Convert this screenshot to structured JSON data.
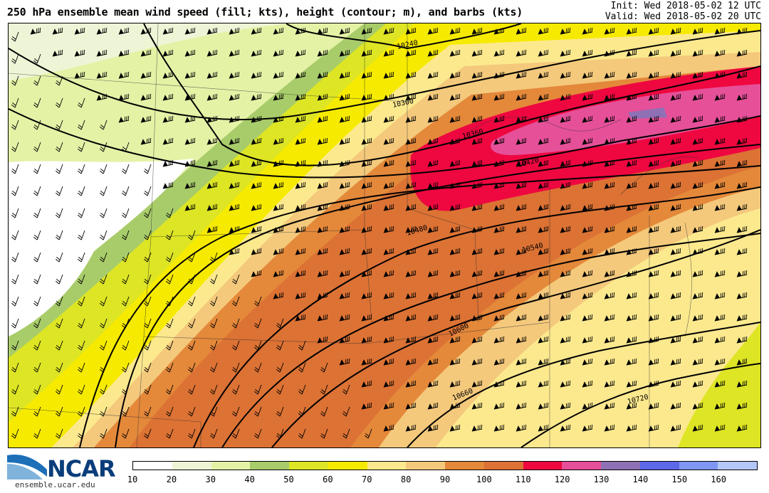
{
  "header": {
    "title": "250 hPa ensemble mean wind speed (fill; kts), height (contour; m), and barbs (kts)",
    "init": "Init: Wed 2018-05-02 12 UTC",
    "valid": "Valid: Wed 2018-05-02 20 UTC"
  },
  "contours": {
    "labels": [
      "10240",
      "10300",
      "10360",
      "10420",
      "10480",
      "10540",
      "10600",
      "10660",
      "10720"
    ]
  },
  "colorbar": {
    "ticks": [
      "10",
      "20",
      "30",
      "40",
      "50",
      "60",
      "70",
      "80",
      "90",
      "100",
      "110",
      "120",
      "130",
      "140",
      "150",
      "160"
    ],
    "colors": [
      "#ffffff",
      "#eef5d6",
      "#e4f2a6",
      "#a8cc6a",
      "#dde524",
      "#f6ea00",
      "#fce98e",
      "#f4c97c",
      "#e4883a",
      "#dc7234",
      "#ef0740",
      "#e55099",
      "#8f70b4",
      "#5b68e8",
      "#7f96f2",
      "#b4c8f8"
    ]
  },
  "footer": {
    "logo": "NCAR",
    "url": "ensemble.ucar.edu"
  }
}
